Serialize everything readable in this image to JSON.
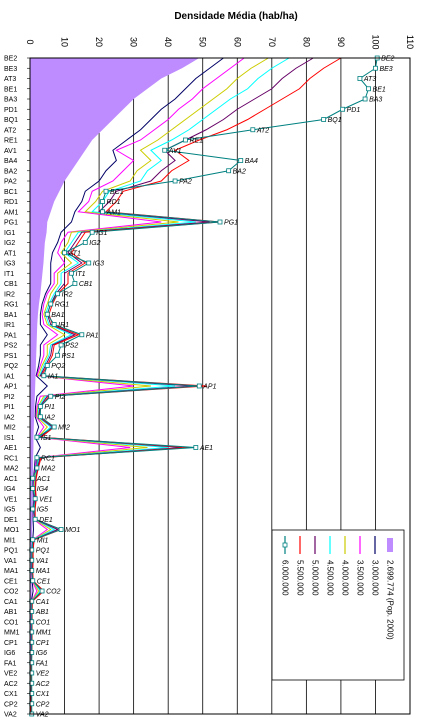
{
  "chart_data": {
    "type": "line",
    "title": "Densidade Média (hab/ha)",
    "xlim": [
      0,
      110
    ],
    "x_ticks": [
      0,
      10,
      20,
      30,
      40,
      50,
      60,
      70,
      80,
      90,
      100,
      110
    ],
    "grid": true,
    "legend_position": "lower-right",
    "categories": [
      "BE2",
      "BE3",
      "AT3",
      "BE1",
      "BA3",
      "PD1",
      "BQ1",
      "AT2",
      "RE1",
      "AV1",
      "BA4",
      "BA2",
      "PA2",
      "BC1",
      "RD1",
      "AM1",
      "PG1",
      "IG1",
      "IG2",
      "AT1",
      "IG3",
      "IT1",
      "CB1",
      "IR2",
      "RG1",
      "BA1",
      "IR1",
      "PA1",
      "PS2",
      "PS1",
      "PQ2",
      "IA1",
      "AP1",
      "PI2",
      "PI1",
      "IA2",
      "MI2",
      "IS1",
      "AE1",
      "RC1",
      "MA2",
      "AC1",
      "IG4",
      "VE1",
      "IG5",
      "DE1",
      "MO1",
      "MI1",
      "PQ1",
      "VA1",
      "MA1",
      "CE1",
      "CO2",
      "CA1",
      "AB1",
      "CO1",
      "MM1",
      "CP1",
      "IG6",
      "FA1",
      "VE2",
      "AC2",
      "CX1",
      "CP2",
      "VA2"
    ],
    "series": [
      {
        "name": "2.699.774 (Pop. 2000)",
        "color": "#bf8cff",
        "style": "area",
        "values": [
          49,
          44,
          38,
          34,
          30,
          27,
          24,
          21,
          18,
          16,
          14,
          12,
          10,
          8.5,
          7,
          6,
          5,
          4.8,
          4.3,
          4.1,
          3.9,
          3.6,
          3.3,
          3.0,
          2.6,
          2.3,
          2.1,
          2.0,
          1.9,
          1.8,
          1.7,
          1.6,
          1.5,
          1.4,
          1.3,
          1.2,
          1.1,
          1.0,
          1.0,
          0.9,
          0.9,
          0.8,
          0.8,
          0.7,
          0.7,
          0.7,
          0.6,
          0.6,
          0.6,
          0.5,
          0.5,
          0.5,
          0.5,
          0.5,
          0.4,
          0.4,
          0.4,
          0.4,
          0.4,
          0.3,
          0.3,
          0.3,
          0.3,
          0.3,
          0.3
        ]
      },
      {
        "name": "3.000.000",
        "color": "#000066",
        "style": "line",
        "values": [
          56,
          52,
          48,
          45,
          42,
          38,
          35,
          32,
          28,
          24,
          25,
          22,
          20,
          16,
          15,
          13,
          12,
          9,
          8,
          6.5,
          6,
          6,
          6,
          4.5,
          3.5,
          3,
          3,
          5,
          3,
          3,
          2.5,
          1.8,
          5,
          2,
          1.6,
          1.5,
          2.5,
          1.5,
          3,
          1.5,
          1.3,
          1,
          0.9,
          1,
          0.9,
          0.9,
          1,
          0.8,
          0.6,
          0.6,
          0.5,
          0.6,
          0.9,
          0.4,
          0.4,
          0.4,
          0.4,
          0.4,
          0.4,
          0.3,
          0.3,
          0.3,
          0.3,
          0.3,
          0.3
        ]
      },
      {
        "name": "3.500.000",
        "color": "#ff00ff",
        "style": "line",
        "values": [
          62,
          58,
          54,
          50,
          47,
          43,
          40,
          36,
          32,
          25,
          30,
          27,
          24,
          18,
          17,
          14,
          38,
          11,
          9,
          8,
          10,
          7,
          7,
          5,
          4,
          3.5,
          4,
          8,
          4,
          4,
          3,
          2,
          30,
          3,
          2,
          1.8,
          4,
          2,
          29,
          2,
          1.5,
          1.2,
          1,
          1.2,
          1,
          1,
          5,
          0.8,
          0.6,
          0.6,
          0.5,
          0.6,
          2,
          0.5,
          0.4,
          0.4,
          0.4,
          0.4,
          0.4,
          0.3,
          0.3,
          0.3,
          0.3,
          0.3,
          0.3
        ]
      },
      {
        "name": "4.000.000",
        "color": "#cccc00",
        "style": "line",
        "values": [
          69,
          64,
          60,
          57,
          53,
          49,
          45,
          41,
          37,
          32,
          35,
          31,
          29,
          21,
          19,
          16,
          43,
          12,
          11,
          9,
          12,
          8,
          8,
          6,
          5,
          4,
          5,
          10,
          5,
          5,
          3.5,
          2.4,
          35,
          4,
          2.3,
          2,
          5,
          2.3,
          34,
          2.3,
          1.8,
          1.4,
          1.2,
          1.4,
          1.2,
          1.2,
          6,
          0.9,
          0.7,
          0.7,
          0.6,
          0.7,
          2.5,
          0.5,
          0.5,
          0.5,
          0.5,
          0.5,
          0.4,
          0.4,
          0.3,
          0.3,
          0.3,
          0.3,
          0.3
        ]
      },
      {
        "name": "4.500.000",
        "color": "#00ffff",
        "style": "line",
        "values": [
          75,
          70,
          66,
          63,
          58,
          54,
          50,
          46,
          41,
          35,
          38,
          34,
          32,
          23,
          21,
          18,
          48,
          14,
          12,
          10,
          14,
          9,
          9,
          7,
          5.5,
          4.5,
          5.5,
          12,
          6,
          5.5,
          4,
          2.8,
          42,
          4.5,
          2.6,
          2.3,
          6,
          2.6,
          40,
          2.6,
          2,
          1.6,
          1.4,
          1.6,
          1.3,
          1.3,
          7,
          1,
          0.8,
          0.8,
          0.7,
          0.8,
          3,
          0.6,
          0.5,
          0.5,
          0.5,
          0.5,
          0.4,
          0.4,
          0.4,
          0.3,
          0.3,
          0.3,
          0.3
        ]
      },
      {
        "name": "5.000.000",
        "color": "#660066",
        "style": "line",
        "values": [
          82,
          77,
          73,
          70,
          65,
          60,
          56,
          51,
          45,
          39,
          42,
          38,
          35,
          25,
          23,
          20,
          52,
          15,
          13,
          11,
          15,
          10,
          10,
          7.5,
          6,
          5,
          6,
          13,
          6.5,
          6,
          4.5,
          3,
          47,
          5,
          2.9,
          2.5,
          6.5,
          2.9,
          44,
          2.9,
          2.2,
          1.7,
          1.5,
          1.7,
          1.4,
          1.4,
          8,
          1.1,
          0.9,
          0.8,
          0.7,
          0.8,
          3.5,
          0.6,
          0.6,
          0.6,
          0.5,
          0.5,
          0.5,
          0.4,
          0.4,
          0.4,
          0.3,
          0.3,
          0.3
        ]
      },
      {
        "name": "5.500.000",
        "color": "#ff0000",
        "style": "line",
        "values": [
          90,
          85,
          81,
          78,
          73,
          68,
          63,
          57,
          49,
          42,
          46,
          41,
          38,
          27,
          25,
          22,
          55,
          16,
          14,
          12,
          16,
          11,
          11,
          8,
          6.5,
          5.5,
          6.5,
          14,
          7,
          6.5,
          5,
          3.3,
          51,
          5.5,
          3.2,
          2.7,
          7,
          3.2,
          46,
          3.2,
          2.4,
          1.8,
          1.6,
          1.8,
          1.5,
          1.5,
          9,
          1.2,
          0.9,
          0.9,
          0.8,
          0.9,
          4,
          0.7,
          0.6,
          0.6,
          0.6,
          0.6,
          0.5,
          0.4,
          0.4,
          0.4,
          0.4,
          0.3,
          0.3
        ]
      },
      {
        "name": "6.000.000",
        "color": "#008080",
        "style": "line-marker",
        "values": [
          100.5,
          100,
          95.5,
          98,
          97,
          90.5,
          85,
          64.5,
          45,
          39,
          61,
          57.5,
          42,
          22,
          21,
          21,
          55,
          18,
          16,
          10,
          17,
          12,
          13,
          8,
          6,
          5,
          7,
          15,
          9,
          8,
          5,
          4,
          49,
          6,
          3,
          3,
          7,
          2,
          48,
          2,
          2,
          0.8,
          0.8,
          1.5,
          0.8,
          1.5,
          9,
          0.8,
          0.5,
          0.5,
          0.5,
          0.8,
          3.5,
          0.5,
          0.5,
          0.5,
          0.5,
          0.5,
          0.5,
          0.5,
          0.5,
          0.5,
          0.5,
          0.5,
          0.5
        ]
      }
    ]
  }
}
